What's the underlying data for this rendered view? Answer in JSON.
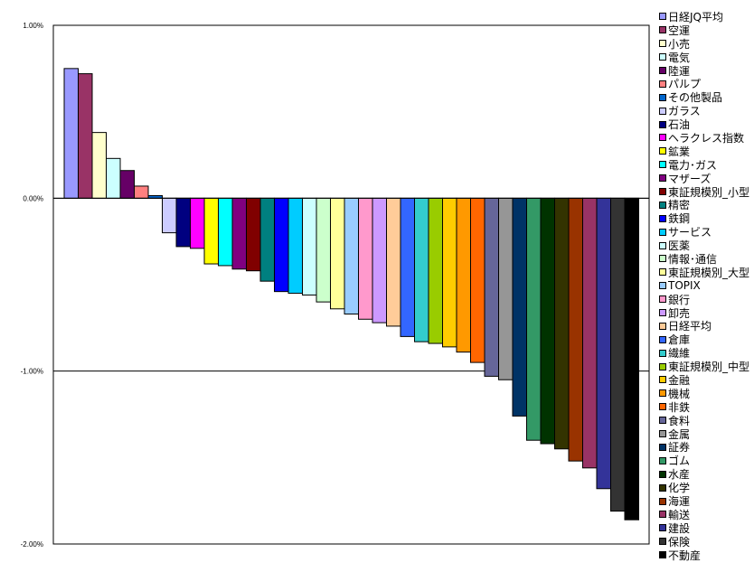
{
  "chart_data": {
    "type": "bar",
    "title": "",
    "xlabel": "",
    "ylabel": "",
    "ylim": [
      -2.0,
      1.0
    ],
    "yticks": [
      "1.00%",
      "0.00%",
      "-1.00%",
      "-2.00%"
    ],
    "ytick_values": [
      1.0,
      0.0,
      -1.0,
      -2.0
    ],
    "gridlines": [
      0.0,
      -1.0
    ],
    "legend_position": "right",
    "categories": [
      "日経JQ平均",
      "空運",
      "小売",
      "電気",
      "陸運",
      "パルプ",
      "その他製品",
      "ガラス",
      "石油",
      "ヘラクレス指数",
      "鉱業",
      "電力･ガス",
      "マザーズ",
      "東証規模別_小型",
      "精密",
      "鉄鋼",
      "サービス",
      "医薬",
      "情報･通信",
      "東証規模別_大型",
      "TOPIX",
      "銀行",
      "卸売",
      "日経平均",
      "倉庫",
      "繊維",
      "東証規模別_中型",
      "金融",
      "機械",
      "非鉄",
      "食料",
      "金属",
      "証券",
      "ゴム",
      "水産",
      "化学",
      "海運",
      "輸送",
      "建設",
      "保険",
      "不動産"
    ],
    "values": [
      0.75,
      0.72,
      0.38,
      0.23,
      0.16,
      0.07,
      0.015,
      -0.2,
      -0.28,
      -0.29,
      -0.38,
      -0.39,
      -0.41,
      -0.42,
      -0.48,
      -0.54,
      -0.55,
      -0.56,
      -0.6,
      -0.64,
      -0.67,
      -0.7,
      -0.72,
      -0.74,
      -0.8,
      -0.83,
      -0.84,
      -0.86,
      -0.89,
      -0.95,
      -1.03,
      -1.05,
      -1.26,
      -1.4,
      -1.42,
      -1.45,
      -1.52,
      -1.56,
      -1.68,
      -1.81,
      -1.86
    ],
    "colors": [
      "#9999FF",
      "#993366",
      "#FFFFCC",
      "#CCFFFF",
      "#660066",
      "#FF8080",
      "#0066CC",
      "#CCCCFF",
      "#000080",
      "#FF00FF",
      "#FFFF00",
      "#00FFFF",
      "#800080",
      "#800000",
      "#008080",
      "#0000FF",
      "#00CCFF",
      "#CCFFFF",
      "#CCFFCC",
      "#FFFF99",
      "#99CCFF",
      "#FF99CC",
      "#CC99FF",
      "#FFCC99",
      "#3366FF",
      "#33CCCC",
      "#99CC00",
      "#FFCC00",
      "#FF9900",
      "#FF6600",
      "#666699",
      "#969696",
      "#003366",
      "#339966",
      "#003300",
      "#333300",
      "#993300",
      "#993366",
      "#333399",
      "#333333",
      "#000000"
    ]
  }
}
